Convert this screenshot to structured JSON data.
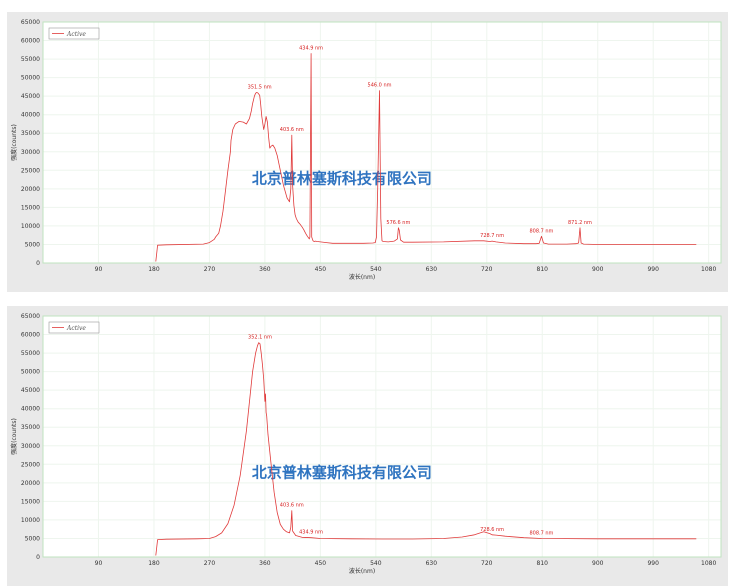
{
  "colors": {
    "line": "#e03a3a",
    "plot_bg": "#ffffff",
    "grid": "#eef5ee",
    "frame": "#bfe3bf",
    "panel_bg": "#e9e9e9",
    "watermark": "#2f74c0"
  },
  "chart_data": [
    {
      "type": "line",
      "title": "",
      "xlabel": "波长(nm)",
      "ylabel": "强度(counts)",
      "xlim": [
        0,
        1100
      ],
      "ylim": [
        0,
        65000
      ],
      "x_ticks": [
        "90",
        "180",
        "270",
        "360",
        "450",
        "540",
        "630",
        "720",
        "810",
        "900",
        "990",
        "1080"
      ],
      "y_ticks": [
        "0",
        "5000",
        "10000",
        "15000",
        "20000",
        "25000",
        "30000",
        "35000",
        "40000",
        "45000",
        "50000",
        "55000",
        "60000",
        "65000"
      ],
      "legend": {
        "position": "top-left",
        "entries": [
          "Active"
        ]
      },
      "watermark": "北京普林塞斯科技有限公司",
      "series": [
        {
          "name": "Active",
          "x": [
            183,
            186,
            200,
            260,
            270,
            278,
            280,
            285,
            288,
            292,
            295,
            300,
            304,
            305,
            308,
            312,
            318,
            325,
            330,
            335,
            338,
            340,
            343,
            345,
            347,
            349,
            351.5,
            353,
            355,
            358,
            360,
            362,
            364,
            366,
            368,
            370,
            373,
            376,
            380,
            385,
            390,
            396,
            400,
            402,
            403.6,
            405,
            407,
            409,
            411,
            414,
            417,
            420,
            423,
            426,
            429,
            432,
            433,
            434.9,
            436,
            438,
            440,
            442,
            445,
            450,
            460,
            470,
            480,
            500,
            520,
            535,
            539,
            541,
            543,
            546.0,
            548,
            550,
            552,
            560,
            570,
            575,
            576.6,
            578,
            580,
            585,
            600,
            650,
            700,
            715,
            725,
            728.7,
            735,
            750,
            780,
            800,
            805,
            808.7,
            812,
            820,
            850,
            865,
            869,
            871.2,
            873,
            877,
            900,
            950,
            1000,
            1060
          ],
          "y": [
            400,
            4800,
            4900,
            5100,
            5500,
            6400,
            7000,
            8000,
            10000,
            14000,
            18000,
            25000,
            30000,
            33000,
            36000,
            37500,
            38200,
            38000,
            37500,
            39000,
            41000,
            43000,
            45000,
            45800,
            46000,
            45800,
            45200,
            43000,
            39500,
            36000,
            37500,
            39500,
            38000,
            34000,
            31000,
            31500,
            31800,
            31000,
            29000,
            25000,
            21000,
            17500,
            16500,
            20000,
            34500,
            21000,
            15500,
            13000,
            12000,
            11000,
            10500,
            9800,
            9000,
            8000,
            7200,
            6500,
            7000,
            56500,
            7000,
            6000,
            5800,
            5900,
            5800,
            5700,
            5500,
            5300,
            5300,
            5300,
            5300,
            5400,
            5500,
            7000,
            20000,
            46500,
            12000,
            6000,
            5800,
            5700,
            5900,
            6500,
            9500,
            8800,
            6200,
            5600,
            5600,
            5700,
            6000,
            6000,
            5800,
            5900,
            5700,
            5400,
            5200,
            5200,
            5300,
            7200,
            5400,
            5100,
            5100,
            5200,
            5400,
            9500,
            5400,
            5100,
            5000,
            5000,
            5000,
            5000
          ]
        }
      ],
      "annotations": [
        {
          "text": "351.5 nm",
          "x": 351.5,
          "y": 46000
        },
        {
          "text": "403.6 nm",
          "x": 403.6,
          "y": 34500
        },
        {
          "text": "434.9 nm",
          "x": 434.9,
          "y": 56500
        },
        {
          "text": "546.0 nm",
          "x": 546.0,
          "y": 46500
        },
        {
          "text": "576.6 nm",
          "x": 576.6,
          "y": 9500
        },
        {
          "text": "728.7 nm",
          "x": 728.7,
          "y": 6000
        },
        {
          "text": "808.7 nm",
          "x": 808.7,
          "y": 7200
        },
        {
          "text": "871.2 nm",
          "x": 871.2,
          "y": 9500
        }
      ]
    },
    {
      "type": "line",
      "title": "",
      "xlabel": "波长(nm)",
      "ylabel": "强度(counts)",
      "xlim": [
        0,
        1100
      ],
      "ylim": [
        0,
        65000
      ],
      "x_ticks": [
        "90",
        "180",
        "270",
        "360",
        "450",
        "540",
        "630",
        "720",
        "810",
        "900",
        "990",
        "1080"
      ],
      "y_ticks": [
        "0",
        "5000",
        "10000",
        "15000",
        "20000",
        "25000",
        "30000",
        "35000",
        "40000",
        "45000",
        "50000",
        "55000",
        "60000",
        "65000"
      ],
      "legend": {
        "position": "top-left",
        "entries": [
          "Active"
        ]
      },
      "watermark": "北京普林塞斯科技有限公司",
      "series": [
        {
          "name": "Active",
          "x": [
            183,
            186,
            200,
            250,
            270,
            280,
            290,
            300,
            310,
            320,
            330,
            335,
            340,
            345,
            348,
            350,
            352.1,
            354,
            356,
            358,
            360,
            361,
            362,
            363,
            365,
            370,
            375,
            380,
            385,
            390,
            395,
            400,
            402,
            403.6,
            405,
            410,
            420,
            434.9,
            450,
            500,
            550,
            600,
            650,
            680,
            700,
            715,
            725,
            728.6,
            735,
            750,
            780,
            808.7,
            850,
            900,
            950,
            1000,
            1060
          ],
          "y": [
            400,
            4700,
            4800,
            4900,
            5000,
            5500,
            6500,
            9000,
            14000,
            22000,
            34000,
            42000,
            50000,
            55000,
            57000,
            57800,
            57500,
            55000,
            52000,
            48000,
            42000,
            44000,
            39000,
            38000,
            33000,
            25000,
            17500,
            12000,
            8800,
            7500,
            6800,
            6500,
            8000,
            12500,
            7000,
            5800,
            5300,
            5200,
            5000,
            4900,
            4850,
            4850,
            5000,
            5400,
            6000,
            6800,
            6300,
            6000,
            5900,
            5600,
            5200,
            5000,
            4950,
            4900,
            4900,
            4900,
            4900
          ]
        }
      ],
      "annotations": [
        {
          "text": "352.1 nm",
          "x": 352.1,
          "y": 57800
        },
        {
          "text": "403.6 nm",
          "x": 403.6,
          "y": 12500
        },
        {
          "text": "434.9 nm",
          "x": 434.9,
          "y": 5200
        },
        {
          "text": "728.6 nm",
          "x": 728.6,
          "y": 6000
        },
        {
          "text": "808.7 nm",
          "x": 808.7,
          "y": 5000
        }
      ]
    }
  ]
}
